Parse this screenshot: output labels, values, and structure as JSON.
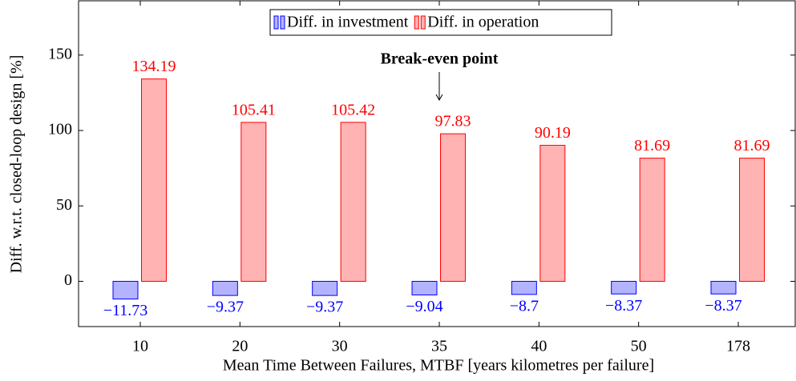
{
  "chart_data": {
    "type": "bar",
    "xlabel": "Mean Time Between Failures, MTBF [years kilometres per failure]",
    "ylabel": "Diff. w.r.t. closed-loop design [%]",
    "annotation": "Break-even point",
    "annotation_category": 3,
    "categories": [
      "10",
      "20",
      "30",
      "35",
      "40",
      "50",
      "178"
    ],
    "series": [
      {
        "name": "Diff. in investment",
        "color": "#0000ff",
        "fill": "#b3b3ff",
        "values": [
          -11.73,
          -9.37,
          -9.37,
          -9.04,
          -8.7,
          -8.37,
          -8.37
        ],
        "value_labels": [
          "−11.73",
          "−9.37",
          "−9.37",
          "−9.04",
          "−8.7",
          "−8.37",
          "−8.37"
        ]
      },
      {
        "name": "Diff. in operation",
        "color": "#ff0000",
        "fill": "#ffb3b3",
        "values": [
          134.19,
          105.41,
          105.42,
          97.83,
          90.19,
          81.69,
          81.69
        ]
      }
    ],
    "ylim": [
      -30,
      186
    ],
    "yticks": [
      0,
      50,
      100,
      150
    ],
    "legend": "top"
  }
}
